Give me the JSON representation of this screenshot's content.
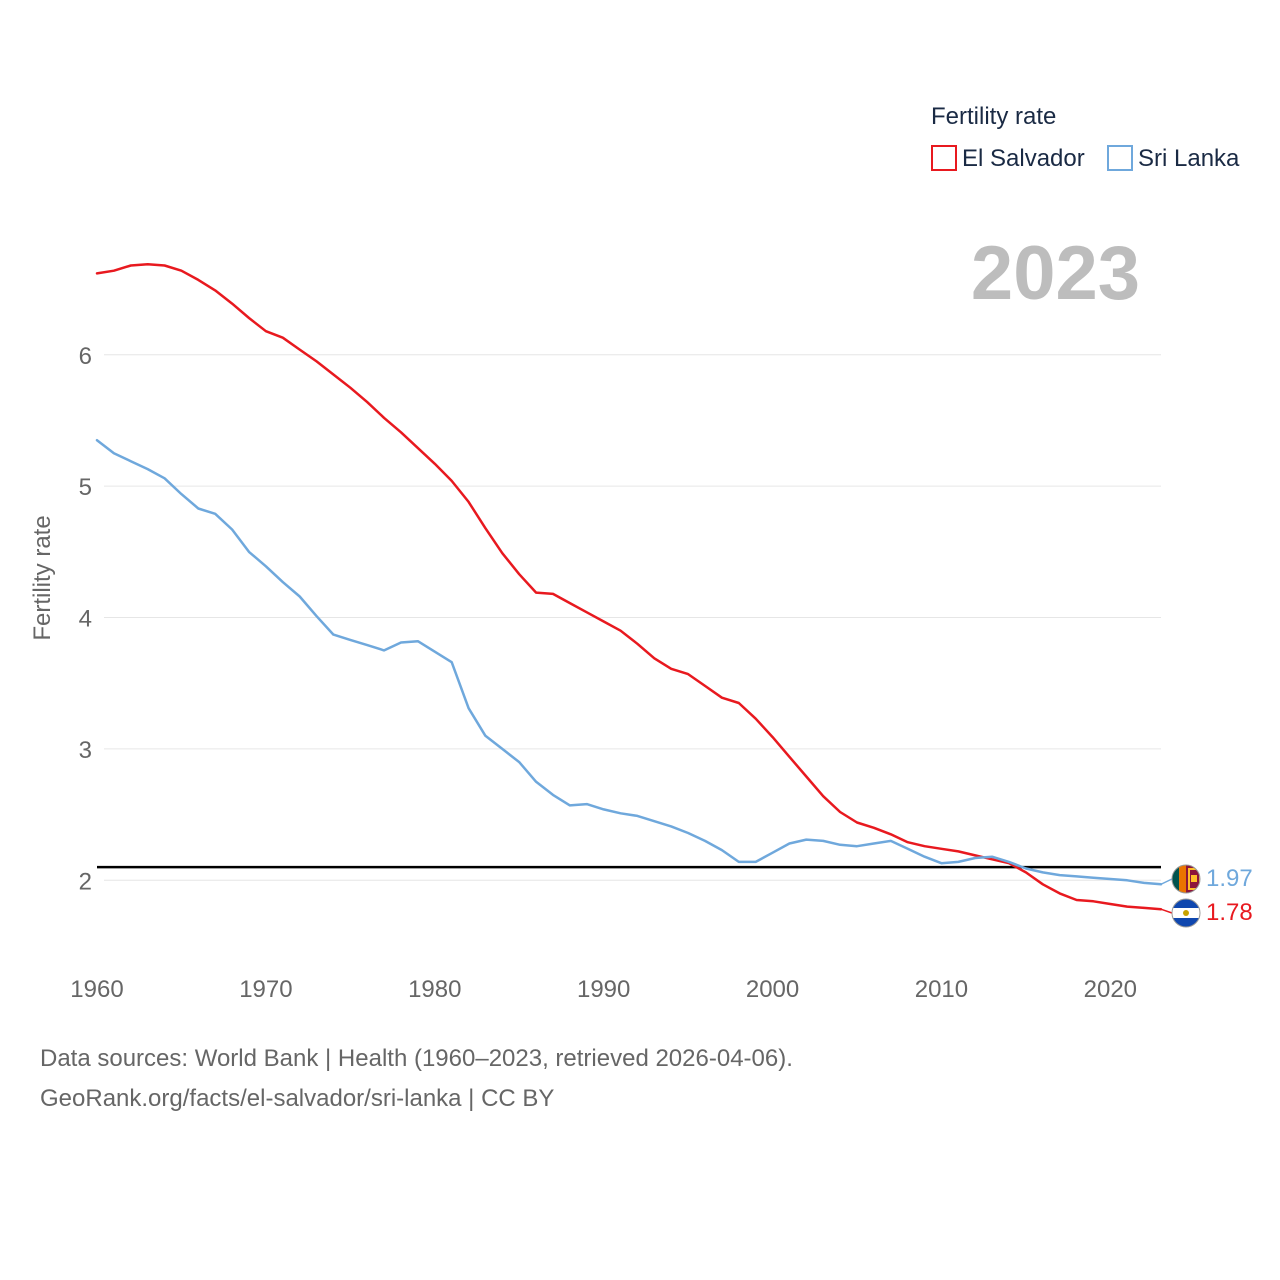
{
  "chart_data": {
    "type": "line",
    "legend_title": "Fertility rate",
    "ylabel": "Fertility rate",
    "year_label": "2023",
    "x": [
      1960,
      1961,
      1962,
      1963,
      1964,
      1965,
      1966,
      1967,
      1968,
      1969,
      1970,
      1971,
      1972,
      1973,
      1974,
      1975,
      1976,
      1977,
      1978,
      1979,
      1980,
      1981,
      1982,
      1983,
      1984,
      1985,
      1986,
      1987,
      1988,
      1989,
      1990,
      1991,
      1992,
      1993,
      1994,
      1995,
      1996,
      1997,
      1998,
      1999,
      2000,
      2001,
      2002,
      2003,
      2004,
      2005,
      2006,
      2007,
      2008,
      2009,
      2010,
      2011,
      2012,
      2013,
      2014,
      2015,
      2016,
      2017,
      2018,
      2019,
      2020,
      2021,
      2022,
      2023
    ],
    "xlim": [
      1960,
      2023
    ],
    "ylim": [
      1.5,
      6.95
    ],
    "xticks": [
      1960,
      1970,
      1980,
      1990,
      2000,
      2010,
      2020
    ],
    "yticks": [
      2,
      3,
      4,
      5,
      6
    ],
    "reference_line": 2.1,
    "series": [
      {
        "name": "El Salvador",
        "color": "#e8191f",
        "end_label": "1.78",
        "values": [
          6.62,
          6.64,
          6.68,
          6.69,
          6.68,
          6.64,
          6.57,
          6.49,
          6.39,
          6.28,
          6.18,
          6.13,
          6.04,
          5.95,
          5.85,
          5.75,
          5.64,
          5.52,
          5.41,
          5.29,
          5.17,
          5.04,
          4.88,
          4.68,
          4.49,
          4.33,
          4.19,
          4.18,
          4.11,
          4.04,
          3.97,
          3.9,
          3.8,
          3.69,
          3.61,
          3.57,
          3.48,
          3.39,
          3.35,
          3.23,
          3.09,
          2.94,
          2.79,
          2.64,
          2.52,
          2.44,
          2.4,
          2.35,
          2.29,
          2.26,
          2.24,
          2.22,
          2.19,
          2.16,
          2.13,
          2.06,
          1.97,
          1.9,
          1.85,
          1.84,
          1.82,
          1.8,
          1.79,
          1.78
        ]
      },
      {
        "name": "Sri Lanka",
        "color": "#6fa8dc",
        "end_label": "1.97",
        "values": [
          5.35,
          5.25,
          5.19,
          5.13,
          5.06,
          4.94,
          4.83,
          4.79,
          4.67,
          4.5,
          4.39,
          4.27,
          4.16,
          4.01,
          3.87,
          3.83,
          3.79,
          3.75,
          3.81,
          3.82,
          3.74,
          3.66,
          3.31,
          3.1,
          3.0,
          2.9,
          2.75,
          2.65,
          2.57,
          2.58,
          2.54,
          2.51,
          2.49,
          2.45,
          2.41,
          2.36,
          2.3,
          2.23,
          2.14,
          2.14,
          2.21,
          2.28,
          2.31,
          2.3,
          2.27,
          2.26,
          2.28,
          2.3,
          2.24,
          2.18,
          2.13,
          2.14,
          2.17,
          2.18,
          2.14,
          2.09,
          2.06,
          2.04,
          2.03,
          2.02,
          2.01,
          2.0,
          1.98,
          1.97
        ]
      }
    ]
  },
  "footer": {
    "sources": "Data sources: World Bank | Health (1960–2023, retrieved 2026-04-06).",
    "link": "GeoRank.org/facts/el-salvador/sri-lanka | CC BY"
  }
}
